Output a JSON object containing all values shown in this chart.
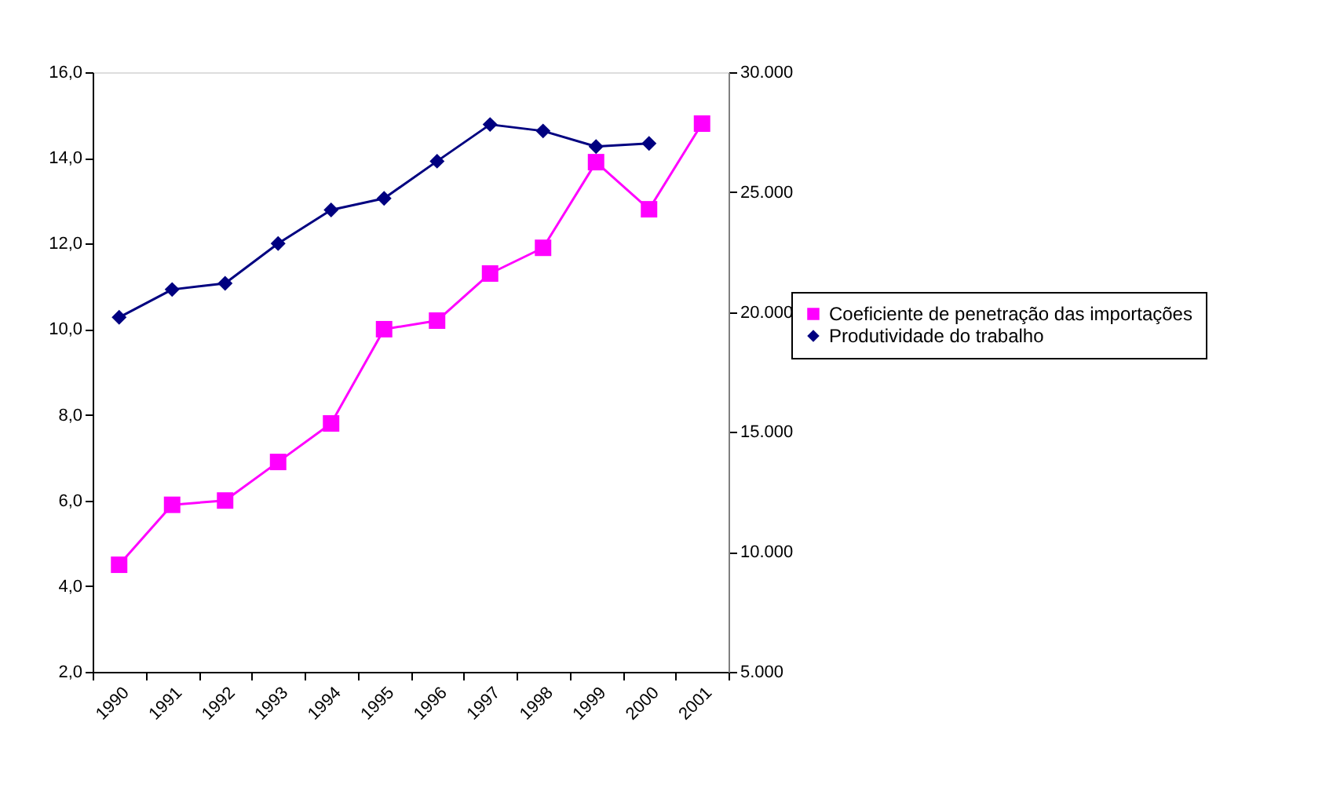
{
  "chart_data": {
    "type": "line",
    "categories": [
      "1990",
      "1991",
      "1992",
      "1993",
      "1994",
      "1995",
      "1996",
      "1997",
      "1998",
      "1999",
      "2000",
      "2001"
    ],
    "series": [
      {
        "name": "Coeficiente de penetração das importações",
        "color": "#ff00ff",
        "marker": "square",
        "values": [
          4.5,
          5.9,
          6.0,
          6.9,
          7.8,
          10.0,
          10.2,
          11.3,
          11.9,
          13.9,
          12.8,
          14.8
        ]
      },
      {
        "name": "Produtividade do trabalho",
        "color": "#000080",
        "marker": "diamond",
        "axis": "y2",
        "values": [
          19780,
          20940,
          21200,
          22860,
          24260,
          24740,
          26290,
          27820,
          27550,
          26900,
          27030,
          null
        ]
      }
    ],
    "ylim": [
      2,
      16
    ],
    "yticks": [
      {
        "value": 2,
        "label": "2,0"
      },
      {
        "value": 4,
        "label": "4,0"
      },
      {
        "value": 6,
        "label": "6,0"
      },
      {
        "value": 8,
        "label": "8,0"
      },
      {
        "value": 10,
        "label": "10,0"
      },
      {
        "value": 12,
        "label": "12,0"
      },
      {
        "value": 14,
        "label": "14,0"
      },
      {
        "value": 16,
        "label": "16,0"
      }
    ],
    "y2lim": [
      5000,
      30000
    ],
    "y2ticks": [
      {
        "value": 5000,
        "label": "5.000"
      },
      {
        "value": 10000,
        "label": "10.000"
      },
      {
        "value": 15000,
        "label": "15.000"
      },
      {
        "value": 20000,
        "label": "20.000"
      },
      {
        "value": 25000,
        "label": "25.000"
      },
      {
        "value": 30000,
        "label": "30.000"
      }
    ],
    "legend": "right",
    "grid": false
  }
}
